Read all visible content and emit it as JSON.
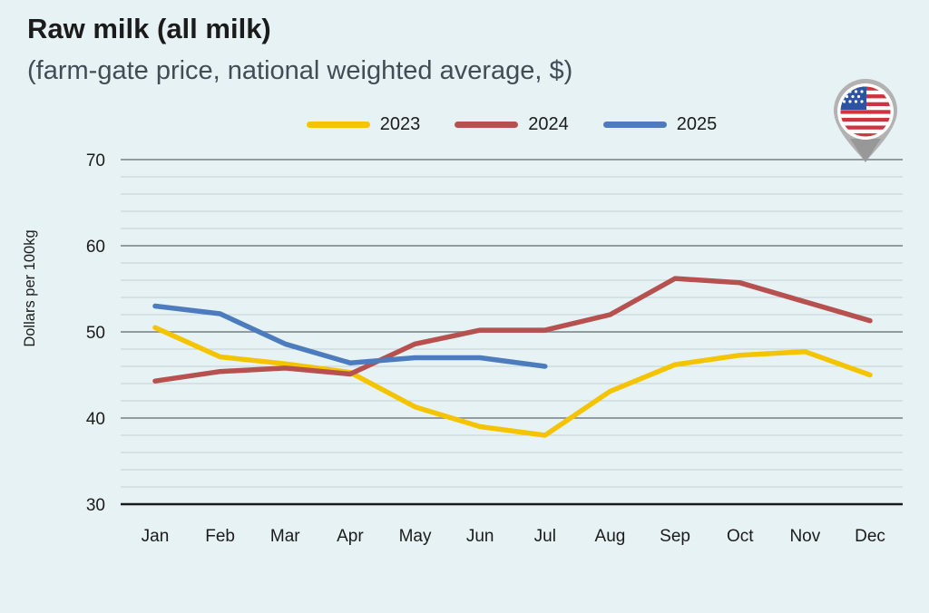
{
  "header": {
    "title": "Raw milk (all milk)",
    "subtitle": "(farm-gate price, national weighted average, $)"
  },
  "icons": {
    "country_pin": "us-flag-map-pin"
  },
  "colors": {
    "background": "#e7f2f5",
    "major_grid": "#869094",
    "minor_grid": "#c3d1d5",
    "axis_line": "#1a1a1a",
    "text": "#1b1b1b",
    "subtitle_text": "#414c54"
  },
  "chart_data": {
    "type": "line",
    "title": "Raw milk (all milk)",
    "subtitle": "(farm-gate price, national weighted average, $)",
    "categories": [
      "Jan",
      "Feb",
      "Mar",
      "Apr",
      "May",
      "Jun",
      "Jul",
      "Aug",
      "Sep",
      "Oct",
      "Nov",
      "Dec"
    ],
    "series": [
      {
        "name": "2023",
        "color": "#F5C400",
        "values": [
          50.5,
          47.1,
          46.3,
          45.3,
          41.3,
          39.0,
          38.0,
          43.1,
          46.2,
          47.3,
          47.7,
          45.0
        ]
      },
      {
        "name": "2024",
        "color": "#B65150",
        "values": [
          44.3,
          45.4,
          45.8,
          45.1,
          48.6,
          50.2,
          50.2,
          52.0,
          56.2,
          55.7,
          53.5,
          51.3
        ]
      },
      {
        "name": "2025",
        "color": "#4D7CBE",
        "values": [
          53.0,
          52.1,
          48.6,
          46.4,
          47.0,
          47.0,
          46.0
        ]
      }
    ],
    "ylabel": "Dollars per 100kg",
    "ylim": [
      30,
      70
    ],
    "yticks": [
      30,
      40,
      50,
      60,
      70
    ],
    "minor_grid_step": 2,
    "grid": true,
    "legend_position": "top-center"
  }
}
